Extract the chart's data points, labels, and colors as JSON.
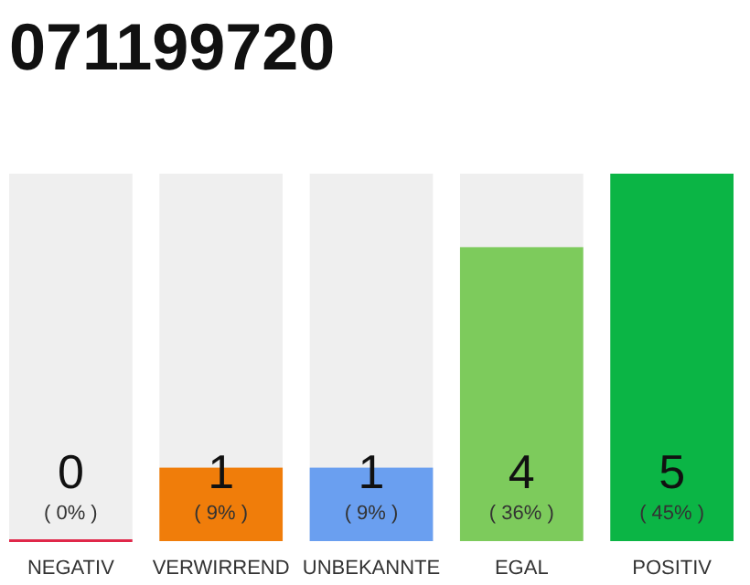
{
  "chart_data": {
    "type": "bar",
    "title": "071199720",
    "categories": [
      "NEGATIV",
      "VERWIRREND",
      "UNBEKANNTE",
      "EGAL",
      "POSITIV"
    ],
    "values": [
      0,
      1,
      1,
      4,
      5
    ],
    "colors": [
      "#e0284a",
      "#f07d0a",
      "#6a9ff0",
      "#7dcb5c",
      "#0bb545"
    ],
    "annotations": [
      "( 0% )",
      "( 9% )",
      "( 9% )",
      "( 36% )",
      "( 45% )"
    ],
    "data_labels": true,
    "ylim": [
      0,
      5
    ],
    "tick_labels": "x"
  }
}
